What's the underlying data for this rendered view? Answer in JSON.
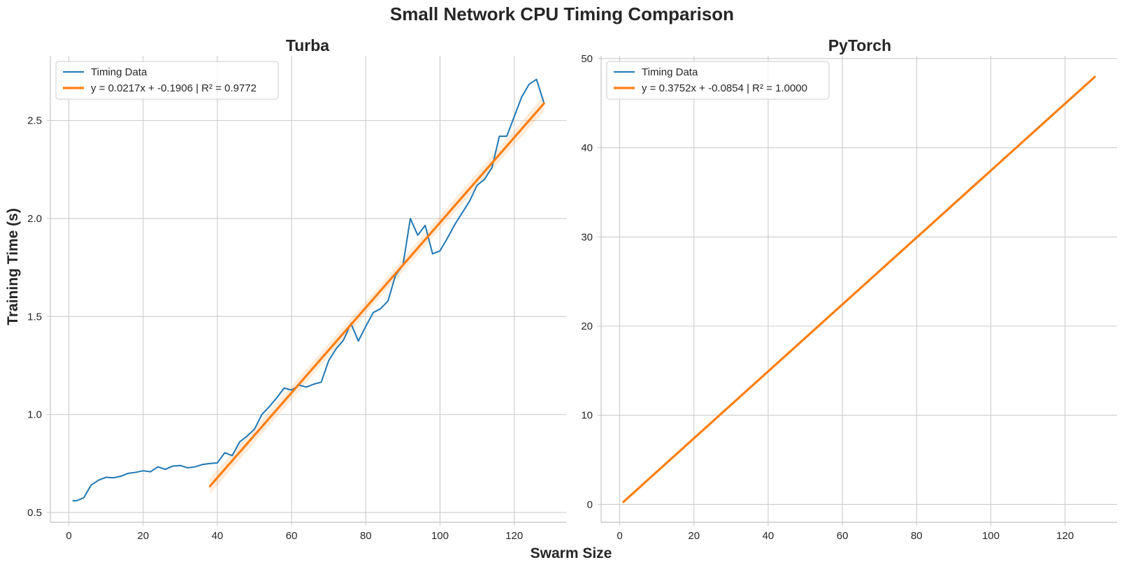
{
  "figure": {
    "title": "Small Network CPU Timing Comparison",
    "xlabel": "Swarm Size",
    "ylabel": "Training Time (s)"
  },
  "colors": {
    "data": "#1f77b4",
    "fit": "#ff7f0e",
    "band": "#ff7f0e"
  },
  "chart_data": [
    {
      "type": "line",
      "title": "Turba",
      "xlim": [
        -5,
        134
      ],
      "ylim": [
        0.45,
        2.83
      ],
      "xticks": [
        0,
        20,
        40,
        60,
        80,
        100,
        120
      ],
      "yticks": [
        0.5,
        1.0,
        1.5,
        2.0,
        2.5
      ],
      "ytick_labels": [
        "0.5",
        "1.0",
        "1.5",
        "2.0",
        "2.5"
      ],
      "legend_position": "top-left",
      "grid": true,
      "series": [
        {
          "name": "Timing Data",
          "x": [
            1,
            2,
            4,
            6,
            8,
            10,
            12,
            14,
            16,
            18,
            20,
            22,
            24,
            26,
            28,
            30,
            32,
            34,
            36,
            38,
            40,
            42,
            44,
            46,
            48,
            50,
            52,
            54,
            56,
            58,
            60,
            62,
            64,
            66,
            68,
            70,
            72,
            74,
            76,
            78,
            80,
            82,
            84,
            86,
            88,
            90,
            92,
            94,
            96,
            98,
            100,
            102,
            104,
            106,
            108,
            110,
            112,
            114,
            116,
            118,
            120,
            122,
            124,
            126,
            128
          ],
          "y": [
            0.56,
            0.56,
            0.575,
            0.64,
            0.665,
            0.68,
            0.677,
            0.685,
            0.7,
            0.705,
            0.713,
            0.708,
            0.733,
            0.72,
            0.737,
            0.74,
            0.728,
            0.733,
            0.745,
            0.75,
            0.753,
            0.805,
            0.79,
            0.86,
            0.89,
            0.925,
            1.0,
            1.04,
            1.085,
            1.135,
            1.125,
            1.15,
            1.14,
            1.155,
            1.165,
            1.275,
            1.335,
            1.38,
            1.465,
            1.375,
            1.45,
            1.52,
            1.54,
            1.58,
            1.71,
            1.76,
            2.0,
            1.915,
            1.965,
            1.82,
            1.835,
            1.9,
            1.97,
            2.03,
            2.09,
            2.17,
            2.2,
            2.26,
            2.42,
            2.42,
            2.52,
            2.62,
            2.685,
            2.71,
            2.59
          ]
        },
        {
          "name": "y = 0.0217x + -0.1906 | R² = 0.9772",
          "type": "regression",
          "x": [
            38,
            128
          ],
          "slope": 0.0217,
          "intercept": -0.1906,
          "ci_halfwidth": [
            0.04,
            0.03,
            0.04
          ]
        }
      ]
    },
    {
      "type": "line",
      "title": "PyTorch",
      "xlim": [
        -5,
        134
      ],
      "ylim": [
        -2,
        50.3
      ],
      "xticks": [
        0,
        20,
        40,
        60,
        80,
        100,
        120
      ],
      "yticks": [
        0,
        10,
        20,
        30,
        40,
        50
      ],
      "ytick_labels": [
        "0",
        "10",
        "20",
        "30",
        "40",
        "50"
      ],
      "legend_position": "top-left",
      "grid": true,
      "series": [
        {
          "name": "Timing Data",
          "x": [
            1,
            8,
            16,
            24,
            32,
            40,
            48,
            56,
            64,
            72,
            80,
            88,
            96,
            104,
            112,
            120,
            128
          ],
          "y": [
            0.3,
            2.9,
            5.9,
            8.9,
            11.9,
            14.9,
            17.9,
            20.9,
            23.9,
            27.0,
            29.9,
            33.0,
            36.0,
            38.9,
            42.0,
            45.0,
            47.9
          ]
        },
        {
          "name": "y = 0.3752x + -0.0854 | R² = 1.0000",
          "type": "regression",
          "x": [
            1,
            128
          ],
          "slope": 0.3752,
          "intercept": -0.0854,
          "ci_halfwidth": [
            0.02,
            0.01,
            0.02
          ]
        }
      ]
    }
  ]
}
